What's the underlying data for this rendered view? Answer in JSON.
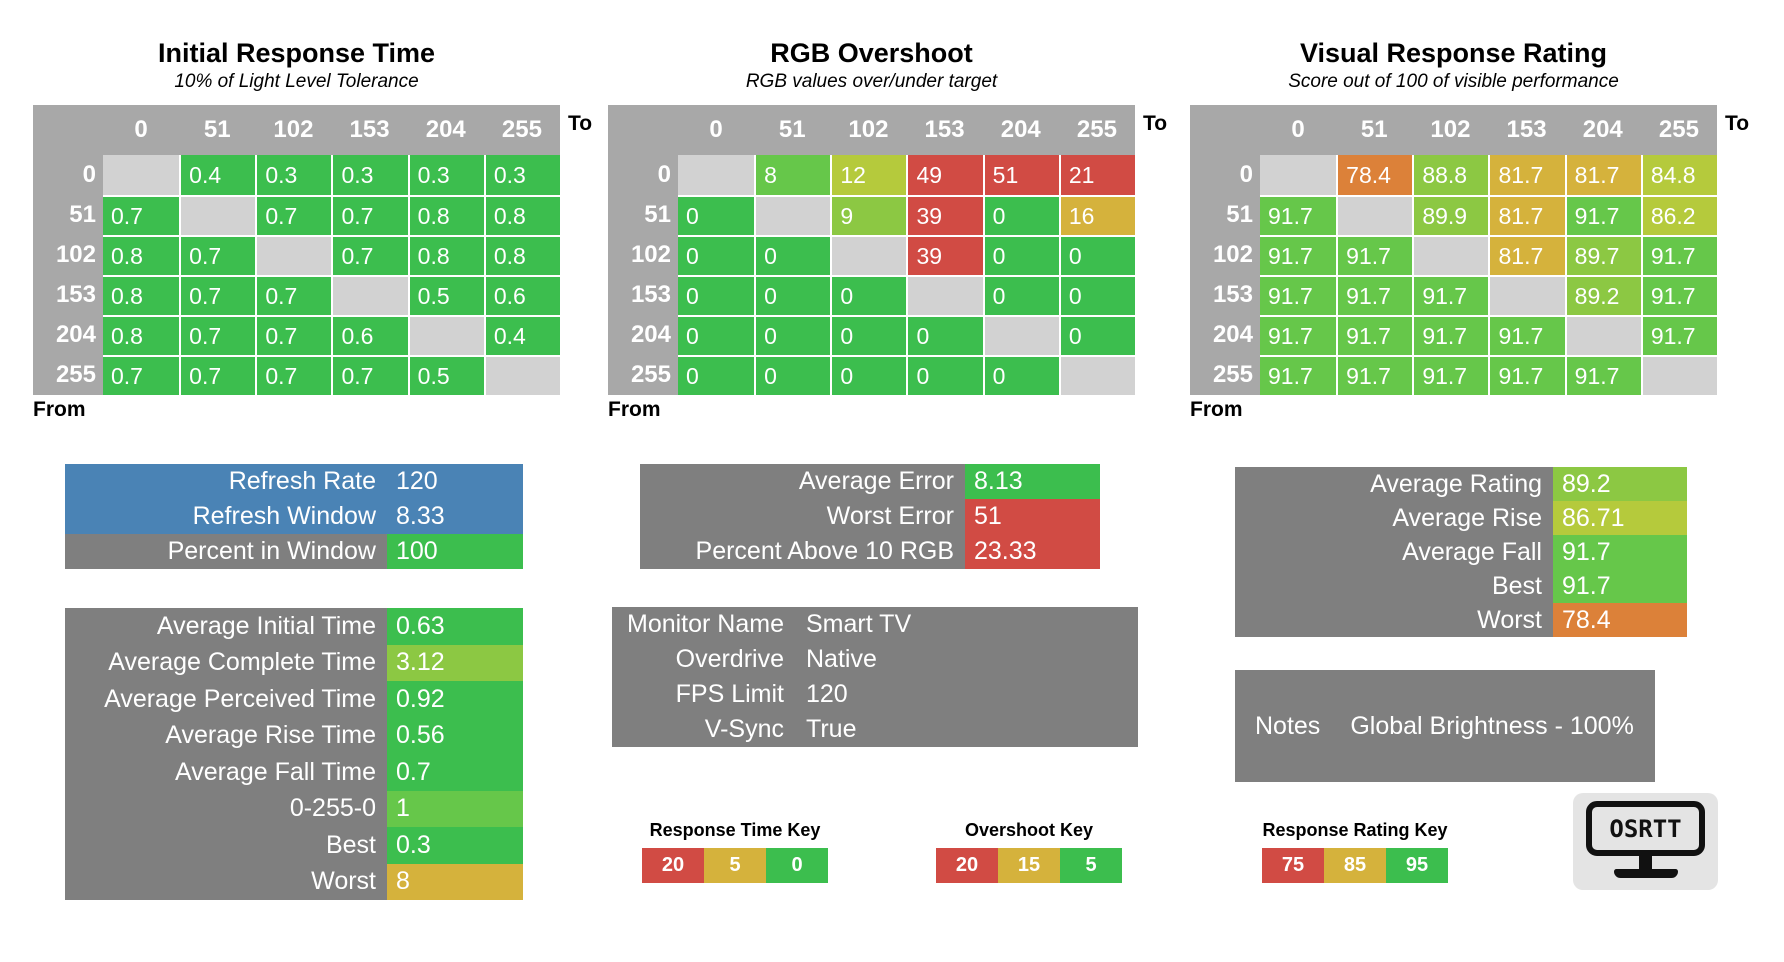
{
  "colors": {
    "g1": "#3CBE4E",
    "g2": "#66C74A",
    "g3": "#8CC843",
    "g4": "#B5CA3C",
    "gold": "#D5B23C",
    "orange": "#DC8139",
    "red": "#D14B44",
    "blue": "#4A83B5",
    "header_gray": "#A8A8A8",
    "diag_gray": "#D2D2D2",
    "panel_gray": "#7F7F7F"
  },
  "axis": {
    "to": "To",
    "from": "From",
    "levels": [
      "0",
      "51",
      "102",
      "153",
      "204",
      "255"
    ]
  },
  "tables": [
    {
      "id": "initial-response-time",
      "title": "Initial Response Time",
      "subtitle": "10% of Light Level Tolerance",
      "cells": [
        [
          null,
          {
            "v": "0.4",
            "c": "g1"
          },
          {
            "v": "0.3",
            "c": "g1"
          },
          {
            "v": "0.3",
            "c": "g1"
          },
          {
            "v": "0.3",
            "c": "g1"
          },
          {
            "v": "0.3",
            "c": "g1"
          }
        ],
        [
          {
            "v": "0.7",
            "c": "g1"
          },
          null,
          {
            "v": "0.7",
            "c": "g1"
          },
          {
            "v": "0.7",
            "c": "g1"
          },
          {
            "v": "0.8",
            "c": "g1"
          },
          {
            "v": "0.8",
            "c": "g1"
          }
        ],
        [
          {
            "v": "0.8",
            "c": "g1"
          },
          {
            "v": "0.7",
            "c": "g1"
          },
          null,
          {
            "v": "0.7",
            "c": "g1"
          },
          {
            "v": "0.8",
            "c": "g1"
          },
          {
            "v": "0.8",
            "c": "g1"
          }
        ],
        [
          {
            "v": "0.8",
            "c": "g1"
          },
          {
            "v": "0.7",
            "c": "g1"
          },
          {
            "v": "0.7",
            "c": "g1"
          },
          null,
          {
            "v": "0.5",
            "c": "g1"
          },
          {
            "v": "0.6",
            "c": "g1"
          }
        ],
        [
          {
            "v": "0.8",
            "c": "g1"
          },
          {
            "v": "0.7",
            "c": "g1"
          },
          {
            "v": "0.7",
            "c": "g1"
          },
          {
            "v": "0.6",
            "c": "g1"
          },
          null,
          {
            "v": "0.4",
            "c": "g1"
          }
        ],
        [
          {
            "v": "0.7",
            "c": "g1"
          },
          {
            "v": "0.7",
            "c": "g1"
          },
          {
            "v": "0.7",
            "c": "g1"
          },
          {
            "v": "0.7",
            "c": "g1"
          },
          {
            "v": "0.5",
            "c": "g1"
          },
          null
        ]
      ]
    },
    {
      "id": "rgb-overshoot",
      "title": "RGB Overshoot",
      "subtitle": "RGB values over/under target",
      "cells": [
        [
          null,
          {
            "v": "8",
            "c": "g2"
          },
          {
            "v": "12",
            "c": "g4"
          },
          {
            "v": "49",
            "c": "red"
          },
          {
            "v": "51",
            "c": "red"
          },
          {
            "v": "21",
            "c": "red"
          }
        ],
        [
          {
            "v": "0",
            "c": "g1"
          },
          null,
          {
            "v": "9",
            "c": "g3"
          },
          {
            "v": "39",
            "c": "red"
          },
          {
            "v": "0",
            "c": "g1"
          },
          {
            "v": "16",
            "c": "gold"
          }
        ],
        [
          {
            "v": "0",
            "c": "g1"
          },
          {
            "v": "0",
            "c": "g1"
          },
          null,
          {
            "v": "39",
            "c": "red"
          },
          {
            "v": "0",
            "c": "g1"
          },
          {
            "v": "0",
            "c": "g1"
          }
        ],
        [
          {
            "v": "0",
            "c": "g1"
          },
          {
            "v": "0",
            "c": "g1"
          },
          {
            "v": "0",
            "c": "g1"
          },
          null,
          {
            "v": "0",
            "c": "g1"
          },
          {
            "v": "0",
            "c": "g1"
          }
        ],
        [
          {
            "v": "0",
            "c": "g1"
          },
          {
            "v": "0",
            "c": "g1"
          },
          {
            "v": "0",
            "c": "g1"
          },
          {
            "v": "0",
            "c": "g1"
          },
          null,
          {
            "v": "0",
            "c": "g1"
          }
        ],
        [
          {
            "v": "0",
            "c": "g1"
          },
          {
            "v": "0",
            "c": "g1"
          },
          {
            "v": "0",
            "c": "g1"
          },
          {
            "v": "0",
            "c": "g1"
          },
          {
            "v": "0",
            "c": "g1"
          },
          null
        ]
      ]
    },
    {
      "id": "visual-response-rating",
      "title": "Visual Response Rating",
      "subtitle": "Score out of 100 of visible performance",
      "cells": [
        [
          null,
          {
            "v": "78.4",
            "c": "orange"
          },
          {
            "v": "88.8",
            "c": "g3"
          },
          {
            "v": "81.7",
            "c": "gold"
          },
          {
            "v": "81.7",
            "c": "gold"
          },
          {
            "v": "84.8",
            "c": "g4"
          }
        ],
        [
          {
            "v": "91.7",
            "c": "g2"
          },
          null,
          {
            "v": "89.9",
            "c": "g3"
          },
          {
            "v": "81.7",
            "c": "gold"
          },
          {
            "v": "91.7",
            "c": "g2"
          },
          {
            "v": "86.2",
            "c": "g4"
          }
        ],
        [
          {
            "v": "91.7",
            "c": "g2"
          },
          {
            "v": "91.7",
            "c": "g2"
          },
          null,
          {
            "v": "81.7",
            "c": "gold"
          },
          {
            "v": "89.7",
            "c": "g3"
          },
          {
            "v": "91.7",
            "c": "g2"
          }
        ],
        [
          {
            "v": "91.7",
            "c": "g2"
          },
          {
            "v": "91.7",
            "c": "g2"
          },
          {
            "v": "91.7",
            "c": "g2"
          },
          null,
          {
            "v": "89.2",
            "c": "g3"
          },
          {
            "v": "91.7",
            "c": "g2"
          }
        ],
        [
          {
            "v": "91.7",
            "c": "g2"
          },
          {
            "v": "91.7",
            "c": "g2"
          },
          {
            "v": "91.7",
            "c": "g2"
          },
          {
            "v": "91.7",
            "c": "g2"
          },
          null,
          {
            "v": "91.7",
            "c": "g2"
          }
        ],
        [
          {
            "v": "91.7",
            "c": "g2"
          },
          {
            "v": "91.7",
            "c": "g2"
          },
          {
            "v": "91.7",
            "c": "g2"
          },
          {
            "v": "91.7",
            "c": "g2"
          },
          {
            "v": "91.7",
            "c": "g2"
          },
          null
        ]
      ]
    }
  ],
  "panels": {
    "refresh": {
      "rows": [
        {
          "label": "Refresh Rate",
          "value": "120",
          "lc": "blue",
          "vc": "blue"
        },
        {
          "label": "Refresh Window",
          "value": "8.33",
          "lc": "blue",
          "vc": "blue"
        },
        {
          "label": "Percent in Window",
          "value": "100",
          "lc": "panel_gray",
          "vc": "g1"
        }
      ]
    },
    "time_stats": {
      "rows": [
        {
          "label": "Average Initial Time",
          "value": "0.63",
          "lc": "panel_gray",
          "vc": "g1"
        },
        {
          "label": "Average Complete Time",
          "value": "3.12",
          "lc": "panel_gray",
          "vc": "g3"
        },
        {
          "label": "Average Perceived Time",
          "value": "0.92",
          "lc": "panel_gray",
          "vc": "g1"
        },
        {
          "label": "Average Rise Time",
          "value": "0.56",
          "lc": "panel_gray",
          "vc": "g1"
        },
        {
          "label": "Average Fall Time",
          "value": "0.7",
          "lc": "panel_gray",
          "vc": "g1"
        },
        {
          "label": "0-255-0",
          "value": "1",
          "lc": "panel_gray",
          "vc": "g2"
        },
        {
          "label": "Best",
          "value": "0.3",
          "lc": "panel_gray",
          "vc": "g1"
        },
        {
          "label": "Worst",
          "value": "8",
          "lc": "panel_gray",
          "vc": "gold"
        }
      ]
    },
    "error": {
      "rows": [
        {
          "label": "Average Error",
          "value": "8.13",
          "lc": "panel_gray",
          "vc": "g1"
        },
        {
          "label": "Worst Error",
          "value": "51",
          "lc": "panel_gray",
          "vc": "red"
        },
        {
          "label": "Percent Above 10 RGB",
          "value": "23.33",
          "lc": "panel_gray",
          "vc": "red"
        }
      ]
    },
    "monitor": {
      "rows": [
        {
          "label": "Monitor Name",
          "value": "Smart TV",
          "lc": "panel_gray",
          "vc": "panel_gray"
        },
        {
          "label": "Overdrive",
          "value": "Native",
          "lc": "panel_gray",
          "vc": "panel_gray"
        },
        {
          "label": "FPS Limit",
          "value": "120",
          "lc": "panel_gray",
          "vc": "panel_gray"
        },
        {
          "label": "V-Sync",
          "value": "True",
          "lc": "panel_gray",
          "vc": "panel_gray"
        }
      ]
    },
    "rating": {
      "rows": [
        {
          "label": "Average Rating",
          "value": "89.2",
          "lc": "panel_gray",
          "vc": "g3"
        },
        {
          "label": "Average Rise",
          "value": "86.71",
          "lc": "panel_gray",
          "vc": "g4"
        },
        {
          "label": "Average Fall",
          "value": "91.7",
          "lc": "panel_gray",
          "vc": "g2"
        },
        {
          "label": "Best",
          "value": "91.7",
          "lc": "panel_gray",
          "vc": "g2"
        },
        {
          "label": "Worst",
          "value": "78.4",
          "lc": "panel_gray",
          "vc": "orange"
        }
      ]
    },
    "notes": {
      "label": "Notes",
      "value": "Global Brightness - 100%"
    }
  },
  "keys": [
    {
      "id": "response-time-key",
      "title": "Response Time Key",
      "items": [
        {
          "v": "20",
          "c": "red"
        },
        {
          "v": "5",
          "c": "gold"
        },
        {
          "v": "0",
          "c": "g1"
        }
      ]
    },
    {
      "id": "overshoot-key",
      "title": "Overshoot Key",
      "items": [
        {
          "v": "20",
          "c": "red"
        },
        {
          "v": "15",
          "c": "gold"
        },
        {
          "v": "5",
          "c": "g1"
        }
      ]
    },
    {
      "id": "response-rating-key",
      "title": "Response Rating Key",
      "items": [
        {
          "v": "75",
          "c": "red"
        },
        {
          "v": "85",
          "c": "gold"
        },
        {
          "v": "95",
          "c": "g1"
        }
      ]
    }
  ],
  "logo": {
    "text": "OSRTT"
  },
  "chart_data": [
    {
      "type": "heatmap",
      "title": "Initial Response Time",
      "subtitle": "10% of Light Level Tolerance",
      "xlabel": "To",
      "ylabel": "From",
      "x": [
        0,
        51,
        102,
        153,
        204,
        255
      ],
      "y": [
        0,
        51,
        102,
        153,
        204,
        255
      ],
      "values": [
        [
          null,
          0.4,
          0.3,
          0.3,
          0.3,
          0.3
        ],
        [
          0.7,
          null,
          0.7,
          0.7,
          0.8,
          0.8
        ],
        [
          0.8,
          0.7,
          null,
          0.7,
          0.8,
          0.8
        ],
        [
          0.8,
          0.7,
          0.7,
          null,
          0.5,
          0.6
        ],
        [
          0.8,
          0.7,
          0.7,
          0.6,
          null,
          0.4
        ],
        [
          0.7,
          0.7,
          0.7,
          0.7,
          0.5,
          null
        ]
      ],
      "legend": {
        "title": "Response Time Key",
        "red": 20,
        "yellow": 5,
        "green": 0
      }
    },
    {
      "type": "heatmap",
      "title": "RGB Overshoot",
      "subtitle": "RGB values over/under target",
      "xlabel": "To",
      "ylabel": "From",
      "x": [
        0,
        51,
        102,
        153,
        204,
        255
      ],
      "y": [
        0,
        51,
        102,
        153,
        204,
        255
      ],
      "values": [
        [
          null,
          8,
          12,
          49,
          51,
          21
        ],
        [
          0,
          null,
          9,
          39,
          0,
          16
        ],
        [
          0,
          0,
          null,
          39,
          0,
          0
        ],
        [
          0,
          0,
          0,
          null,
          0,
          0
        ],
        [
          0,
          0,
          0,
          0,
          null,
          0
        ],
        [
          0,
          0,
          0,
          0,
          0,
          null
        ]
      ],
      "legend": {
        "title": "Overshoot Key",
        "red": 20,
        "yellow": 15,
        "green": 5
      }
    },
    {
      "type": "heatmap",
      "title": "Visual Response Rating",
      "subtitle": "Score out of 100 of visible performance",
      "xlabel": "To",
      "ylabel": "From",
      "x": [
        0,
        51,
        102,
        153,
        204,
        255
      ],
      "y": [
        0,
        51,
        102,
        153,
        204,
        255
      ],
      "values": [
        [
          null,
          78.4,
          88.8,
          81.7,
          81.7,
          84.8
        ],
        [
          91.7,
          null,
          89.9,
          81.7,
          91.7,
          86.2
        ],
        [
          91.7,
          91.7,
          null,
          81.7,
          89.7,
          91.7
        ],
        [
          91.7,
          91.7,
          91.7,
          null,
          89.2,
          91.7
        ],
        [
          91.7,
          91.7,
          91.7,
          91.7,
          null,
          91.7
        ],
        [
          91.7,
          91.7,
          91.7,
          91.7,
          91.7,
          null
        ]
      ],
      "legend": {
        "title": "Response Rating Key",
        "red": 75,
        "yellow": 85,
        "green": 95
      }
    },
    {
      "type": "table",
      "title": "Summary statistics",
      "rows": [
        [
          "Refresh Rate",
          120
        ],
        [
          "Refresh Window",
          8.33
        ],
        [
          "Percent in Window",
          100
        ],
        [
          "Average Initial Time",
          0.63
        ],
        [
          "Average Complete Time",
          3.12
        ],
        [
          "Average Perceived Time",
          0.92
        ],
        [
          "Average Rise Time",
          0.56
        ],
        [
          "Average Fall Time",
          0.7
        ],
        [
          "0-255-0",
          1
        ],
        [
          "Best",
          0.3
        ],
        [
          "Worst",
          8
        ],
        [
          "Average Error",
          8.13
        ],
        [
          "Worst Error",
          51
        ],
        [
          "Percent Above 10 RGB",
          23.33
        ],
        [
          "Monitor Name",
          "Smart TV"
        ],
        [
          "Overdrive",
          "Native"
        ],
        [
          "FPS Limit",
          120
        ],
        [
          "V-Sync",
          "True"
        ],
        [
          "Average Rating",
          89.2
        ],
        [
          "Average Rise",
          86.71
        ],
        [
          "Average Fall",
          91.7
        ],
        [
          "Best Rating",
          91.7
        ],
        [
          "Worst Rating",
          78.4
        ],
        [
          "Notes",
          "Global Brightness - 100%"
        ]
      ]
    }
  ]
}
